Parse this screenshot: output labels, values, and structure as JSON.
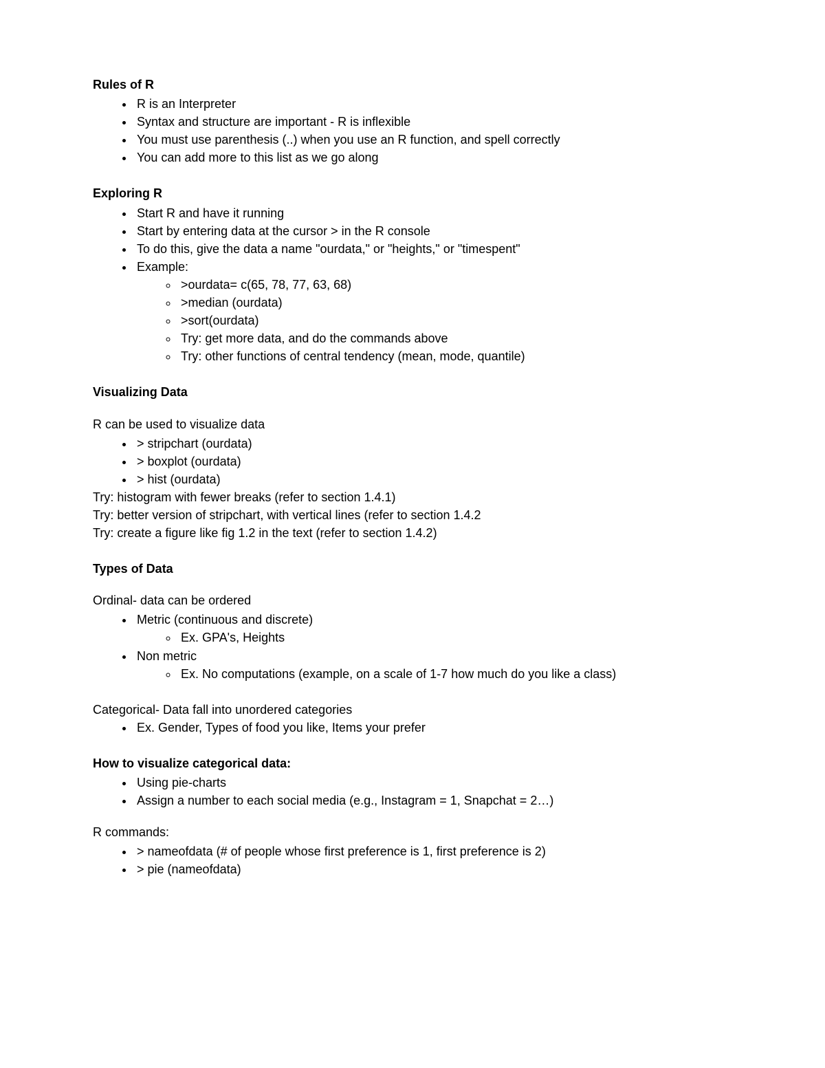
{
  "rules": {
    "heading": "Rules of R",
    "items": [
      "R is an Interpreter",
      "Syntax and structure are important - R is inflexible",
      "You must use parenthesis (..) when you use an R function, and spell correctly",
      "You can add more to this list as we go along"
    ]
  },
  "exploring": {
    "heading": "Exploring R",
    "items": [
      "Start R and have it running",
      "Start by entering data at the cursor > in the R console",
      "To do this, give the data a name \"ourdata,\" or \"heights,\" or \"timespent\"",
      "Example:"
    ],
    "example_sub": [
      ">ourdata= c(65, 78, 77, 63, 68)",
      ">median (ourdata)",
      ">sort(ourdata)",
      "Try: get more data, and do the commands above",
      "Try: other functions of central tendency (mean, mode, quantile)"
    ]
  },
  "visualizing": {
    "heading": "Visualizing Data",
    "intro": "R can be used to visualize data",
    "items": [
      "> stripchart (ourdata)",
      "> boxplot (ourdata)",
      "> hist (ourdata)"
    ],
    "after": [
      "Try: histogram with fewer breaks (refer to section 1.4.1)",
      "Try: better version of stripchart, with vertical lines (refer to section 1.4.2",
      "Try: create a figure like fig 1.2 in the text (refer to section 1.4.2)"
    ]
  },
  "types": {
    "heading": "Types of Data",
    "ordinal_intro": "Ordinal- data can be ordered",
    "ordinal_items": {
      "metric": "Metric (continuous and discrete)",
      "metric_ex": "Ex. GPA's, Heights",
      "nonmetric": "Non metric",
      "nonmetric_ex": "Ex. No computations (example, on a scale of 1-7 how much do you like a class)"
    },
    "categorical_intro": "Categorical- Data fall into unordered categories",
    "categorical_items": [
      "Ex. Gender, Types of food you like, Items your prefer"
    ]
  },
  "howto": {
    "heading": "How to visualize categorical data:",
    "items": [
      "Using pie-charts",
      "Assign a number to each social media (e.g., Instagram = 1, Snapchat = 2…)"
    ],
    "rcommands_label": "R commands:",
    "rcommands": [
      "> nameofdata (# of people whose first preference is 1, first preference is 2)",
      "> pie (nameofdata)"
    ]
  }
}
